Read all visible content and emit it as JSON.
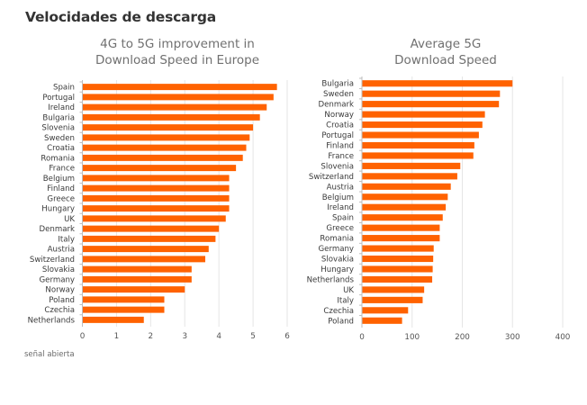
{
  "page": {
    "title": "Velocidades de descarga",
    "footnote": "señal abierta"
  },
  "chart_data": [
    {
      "type": "bar",
      "orientation": "horizontal",
      "title": "4G to 5G improvement in Download Speed in Europe",
      "title_lines": [
        "4G to 5G improvement in",
        "Download Speed in Europe"
      ],
      "xlabel": "",
      "ylabel": "",
      "xlim": [
        0,
        6
      ],
      "xticks": [
        0,
        1,
        2,
        3,
        4,
        5,
        6
      ],
      "grid": true,
      "color": "#ff6200",
      "categories": [
        "Spain",
        "Portugal",
        "Ireland",
        "Bulgaria",
        "Slovenia",
        "Sweden",
        "Croatia",
        "Romania",
        "France",
        "Belgium",
        "Finland",
        "Greece",
        "Hungary",
        "UK",
        "Denmark",
        "Italy",
        "Austria",
        "Switzerland",
        "Slovakia",
        "Germany",
        "Norway",
        "Poland",
        "Czechia",
        "Netherlands"
      ],
      "values": [
        5.7,
        5.6,
        5.4,
        5.2,
        5.0,
        4.9,
        4.8,
        4.7,
        4.5,
        4.3,
        4.3,
        4.3,
        4.3,
        4.2,
        4.0,
        3.9,
        3.7,
        3.6,
        3.2,
        3.2,
        3.0,
        2.4,
        2.4,
        1.8
      ]
    },
    {
      "type": "bar",
      "orientation": "horizontal",
      "title": "Average 5G Download Speed",
      "title_lines": [
        "Average 5G",
        "Download Speed"
      ],
      "xlabel": "",
      "ylabel": "",
      "xlim": [
        0,
        400
      ],
      "xticks": [
        0,
        100,
        200,
        300,
        400
      ],
      "grid": true,
      "color": "#ff6200",
      "categories": [
        "Bulgaria",
        "Sweden",
        "Denmark",
        "Norway",
        "Croatia",
        "Portugal",
        "Finland",
        "France",
        "Slovenia",
        "Switzerland",
        "Austria",
        "Belgium",
        "Ireland",
        "Spain",
        "Greece",
        "Romania",
        "Germany",
        "Slovakia",
        "Hungary",
        "Netherlands",
        "UK",
        "Italy",
        "Czechia",
        "Poland"
      ],
      "values": [
        300,
        275,
        273,
        245,
        240,
        233,
        224,
        222,
        196,
        190,
        177,
        171,
        167,
        161,
        155,
        155,
        143,
        142,
        141,
        140,
        124,
        121,
        92,
        80
      ]
    }
  ]
}
